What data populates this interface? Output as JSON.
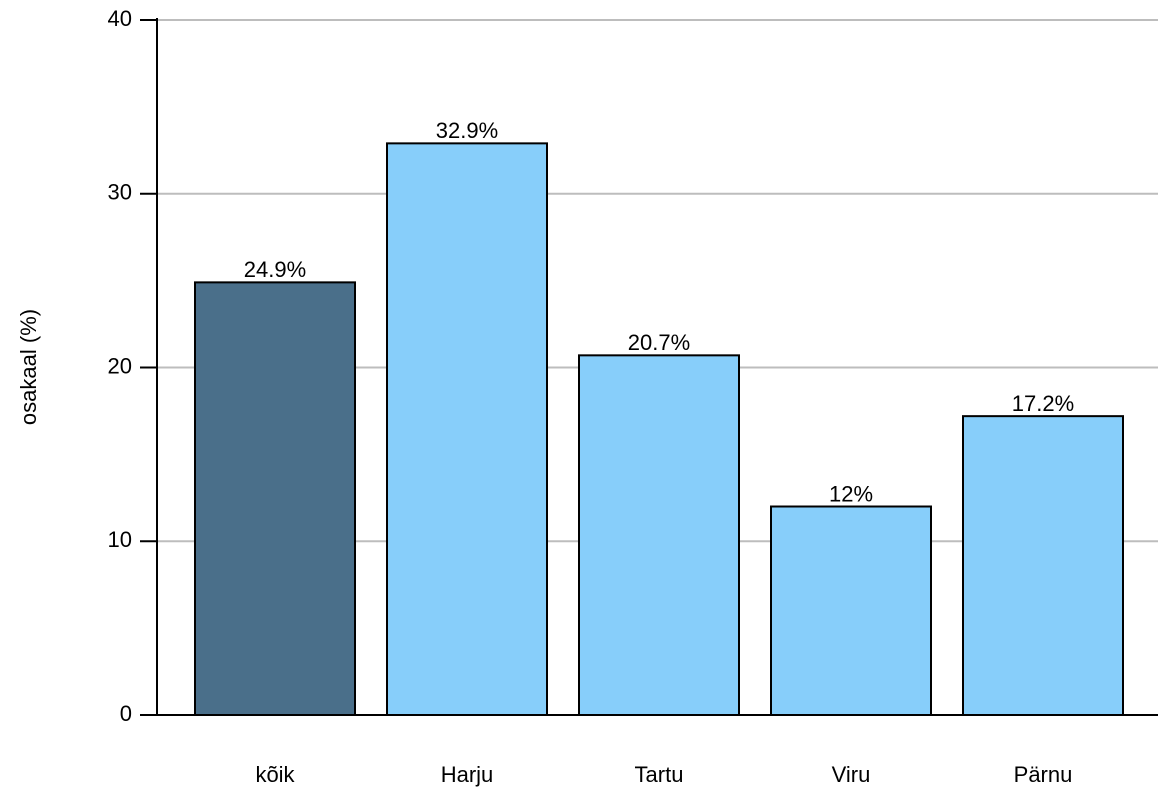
{
  "chart_data": {
    "type": "bar",
    "ylabel": "osakaal (%)",
    "categories": [
      "kõik",
      "Harju",
      "Tartu",
      "Viru",
      "Pärnu"
    ],
    "values": [
      24.9,
      32.9,
      20.7,
      12,
      17.2
    ],
    "value_labels": [
      "24.9%",
      "32.9%",
      "20.7%",
      "12%",
      "17.2%"
    ],
    "colors": [
      "#4a6f8a",
      "#87cefa",
      "#87cefa",
      "#87cefa",
      "#87cefa"
    ],
    "ylim": [
      0,
      40
    ],
    "yticks": [
      0,
      10,
      20,
      30,
      40
    ],
    "grid": true
  }
}
